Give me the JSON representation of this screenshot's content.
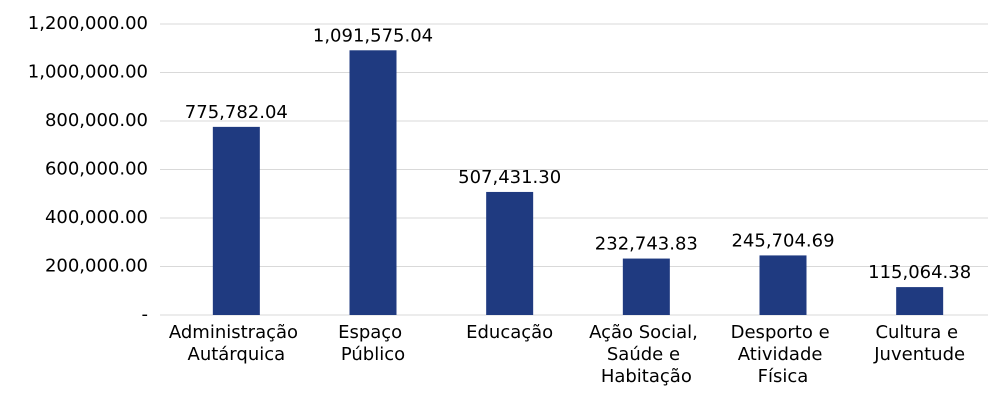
{
  "chart_data": {
    "type": "bar",
    "categories": [
      "Administração Autárquica",
      "Espaço Público",
      "Educação",
      "Ação Social, Saúde e Habitação",
      "Desporto e Atividade Física",
      "Cultura e Juventude"
    ],
    "values": [
      775782.04,
      1091575.04,
      507431.3,
      232743.83,
      245704.69,
      115064.38
    ],
    "value_labels": [
      "775,782.04",
      "1,091,575.04",
      "507,431.30",
      "232,743.83",
      "245,704.69",
      "115,064.38"
    ],
    "color": "#1f3a80",
    "ylim": [
      0,
      1200000
    ],
    "yticks": [
      {
        "value": 0,
        "label": "-"
      },
      {
        "value": 200000,
        "label": "200,000.00"
      },
      {
        "value": 400000,
        "label": "400,000.00"
      },
      {
        "value": 600000,
        "label": "600,000.00"
      },
      {
        "value": 800000,
        "label": "800,000.00"
      },
      {
        "value": 1000000,
        "label": "1,000,000.00"
      },
      {
        "value": 1200000,
        "label": "1,200,000.00"
      }
    ],
    "grid": true
  }
}
